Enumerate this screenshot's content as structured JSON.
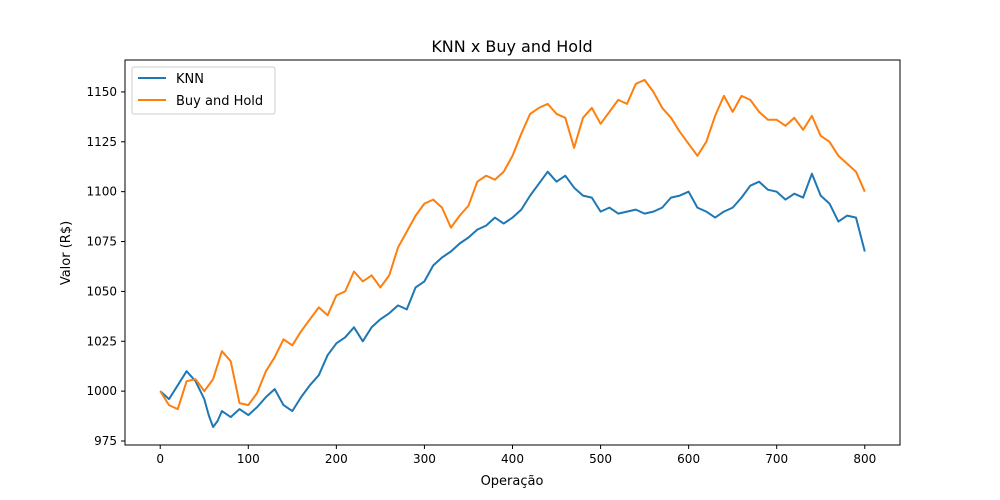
{
  "chart_data": {
    "type": "line",
    "title": "KNN x Buy and Hold",
    "xlabel": "Operação",
    "ylabel": "Valor (R$)",
    "xlim": [
      -40,
      840
    ],
    "ylim": [
      973,
      1166
    ],
    "xticks": [
      0,
      100,
      200,
      300,
      400,
      500,
      600,
      700,
      800
    ],
    "yticks": [
      975,
      1000,
      1025,
      1050,
      1075,
      1100,
      1125,
      1150
    ],
    "grid": false,
    "legend_position": "top-left",
    "series": [
      {
        "name": "KNN",
        "color": "#1f77b4",
        "x": [
          0,
          10,
          20,
          30,
          40,
          50,
          55,
          60,
          65,
          70,
          80,
          90,
          100,
          110,
          120,
          130,
          140,
          150,
          160,
          170,
          180,
          190,
          200,
          210,
          220,
          230,
          240,
          250,
          260,
          270,
          280,
          290,
          300,
          310,
          320,
          330,
          340,
          350,
          360,
          370,
          380,
          390,
          400,
          410,
          420,
          430,
          440,
          450,
          460,
          470,
          480,
          490,
          500,
          510,
          520,
          530,
          540,
          550,
          560,
          570,
          580,
          590,
          600,
          610,
          620,
          630,
          640,
          650,
          660,
          670,
          680,
          690,
          700,
          710,
          720,
          730,
          740,
          750,
          760,
          770,
          780,
          790,
          800
        ],
        "values": [
          1000,
          996,
          1003,
          1010,
          1005,
          996,
          988,
          982,
          985,
          990,
          987,
          991,
          988,
          992,
          997,
          1001,
          993,
          990,
          997,
          1003,
          1008,
          1018,
          1024,
          1027,
          1032,
          1025,
          1032,
          1036,
          1039,
          1043,
          1041,
          1052,
          1055,
          1063,
          1067,
          1070,
          1074,
          1077,
          1081,
          1083,
          1087,
          1084,
          1087,
          1091,
          1098,
          1104,
          1110,
          1105,
          1108,
          1102,
          1098,
          1097,
          1090,
          1092,
          1089,
          1090,
          1091,
          1089,
          1090,
          1092,
          1097,
          1098,
          1100,
          1092,
          1090,
          1087,
          1090,
          1092,
          1097,
          1103,
          1105,
          1101,
          1100,
          1096,
          1099,
          1097,
          1109,
          1098,
          1094,
          1085,
          1088,
          1087,
          1070
        ]
      },
      {
        "name": "Buy and Hold",
        "color": "#ff7f0e",
        "x": [
          0,
          10,
          20,
          30,
          40,
          50,
          60,
          70,
          80,
          90,
          100,
          110,
          120,
          130,
          140,
          150,
          160,
          170,
          180,
          190,
          200,
          210,
          220,
          230,
          240,
          250,
          260,
          270,
          280,
          290,
          300,
          310,
          320,
          330,
          340,
          350,
          360,
          370,
          380,
          390,
          400,
          410,
          420,
          430,
          440,
          450,
          460,
          470,
          480,
          490,
          500,
          510,
          520,
          530,
          540,
          550,
          560,
          570,
          580,
          590,
          600,
          610,
          620,
          630,
          640,
          650,
          660,
          670,
          680,
          690,
          700,
          710,
          720,
          730,
          740,
          750,
          760,
          770,
          780,
          790,
          800
        ],
        "values": [
          1000,
          993,
          991,
          1005,
          1006,
          1000,
          1006,
          1020,
          1015,
          994,
          993,
          999,
          1010,
          1017,
          1026,
          1023,
          1030,
          1036,
          1042,
          1038,
          1048,
          1050,
          1060,
          1055,
          1058,
          1052,
          1058,
          1072,
          1080,
          1088,
          1094,
          1096,
          1092,
          1082,
          1088,
          1093,
          1105,
          1108,
          1106,
          1110,
          1118,
          1129,
          1139,
          1142,
          1144,
          1139,
          1137,
          1122,
          1137,
          1142,
          1134,
          1140,
          1146,
          1144,
          1154,
          1156,
          1150,
          1142,
          1137,
          1130,
          1124,
          1118,
          1125,
          1138,
          1148,
          1140,
          1148,
          1146,
          1140,
          1136,
          1136,
          1133,
          1137,
          1131,
          1138,
          1128,
          1125,
          1118,
          1114,
          1110,
          1100
        ]
      }
    ]
  }
}
